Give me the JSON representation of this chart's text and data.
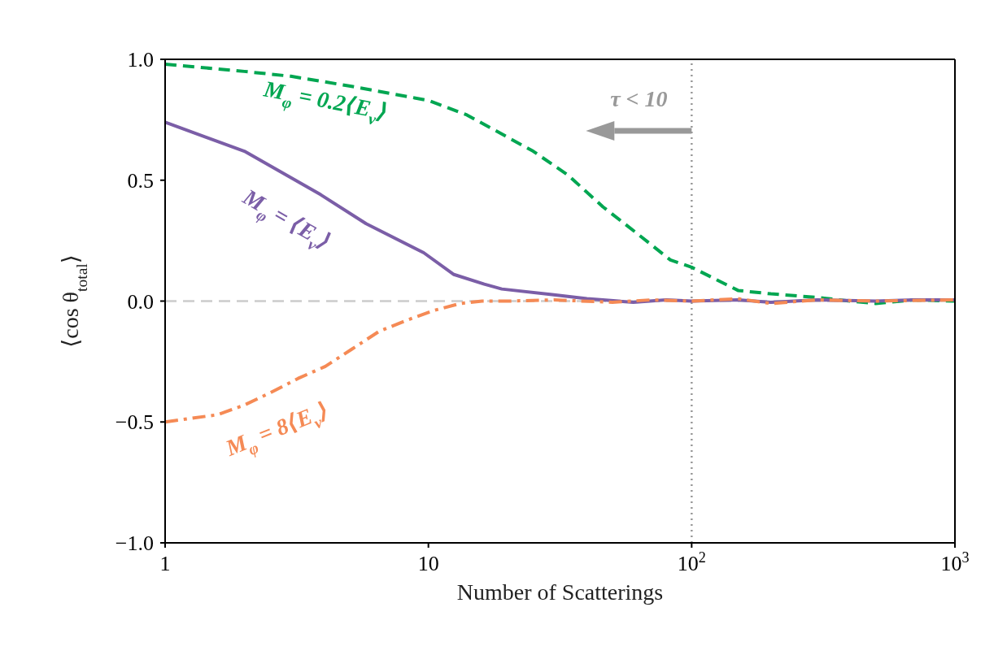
{
  "chart_data": {
    "type": "line",
    "xlabel": "Number of Scatterings",
    "ylabel": "⟨cos θ$_{total}$⟩",
    "log": "x",
    "xlim": [
      1,
      1000
    ],
    "xticks": [
      1,
      10,
      {
        "value": 100,
        "label": "10$^{2}$"
      },
      {
        "value": 1000,
        "label": "10$^{3}$"
      }
    ],
    "ylim": [
      -1,
      1
    ],
    "yticks": [
      {
        "value": -1,
        "label": "−1.0"
      },
      {
        "value": -0.5,
        "label": "−0.5"
      },
      {
        "value": 0,
        "label": "0.0"
      },
      0.5,
      {
        "value": 1,
        "label": "1.0"
      }
    ],
    "ref_lines": [
      {
        "axis": "y",
        "value": 0,
        "color": "#cccccc",
        "line_style": "dashed"
      },
      {
        "axis": "x",
        "value": 100,
        "label": "τ < 10",
        "color": "#999999",
        "line_style": "dotted"
      }
    ],
    "series": [
      {
        "name": "M$_{φ}$ = 0.2⟨E$_{ν}$⟩",
        "color": "#00a651",
        "line_style": "dashed",
        "x": [
          1,
          2,
          3,
          5,
          10,
          14,
          25,
          34,
          46,
          62,
          83,
          100,
          150,
          200,
          300,
          400,
          500,
          700,
          1000
        ],
        "values": [
          0.98,
          0.95,
          0.93,
          0.89,
          0.83,
          0.77,
          0.62,
          0.52,
          0.39,
          0.28,
          0.17,
          0.14,
          0.044,
          0.03,
          0.015,
          0.0,
          -0.01,
          0.005,
          0
        ]
      },
      {
        "name": "M$_{φ}$ = ⟨E$_{ν}$⟩",
        "color": "#7b5ea7",
        "line_style": "solid",
        "x": [
          1,
          2,
          3.9,
          5.8,
          9.6,
          12.5,
          16.3,
          19,
          29.5,
          40,
          60,
          80,
          100,
          150,
          200,
          300,
          500,
          700,
          1000
        ],
        "values": [
          0.74,
          0.62,
          0.44,
          0.32,
          0.2,
          0.11,
          0.07,
          0.05,
          0.027,
          0.01,
          -0.005,
          0.005,
          0,
          0.005,
          -0.005,
          0.005,
          0,
          0.005,
          0.005
        ]
      },
      {
        "name": "M$_{φ}$ = 8⟨E$_{ν}$⟩",
        "color": "#f58a55",
        "line_style": "dashdot",
        "x": [
          1,
          1.58,
          2,
          2.5,
          3.2,
          4.06,
          5.1,
          6.5,
          8.24,
          10.4,
          13.2,
          16,
          20,
          30,
          50,
          70,
          100,
          150,
          200,
          300,
          500,
          1000
        ],
        "values": [
          -0.5,
          -0.47,
          -0.43,
          -0.38,
          -0.32,
          -0.27,
          -0.2,
          -0.125,
          -0.08,
          -0.04,
          -0.01,
          0,
          0,
          0.005,
          -0.005,
          0.005,
          0,
          0.01,
          -0.01,
          0.005,
          0,
          0.005
        ]
      }
    ]
  }
}
